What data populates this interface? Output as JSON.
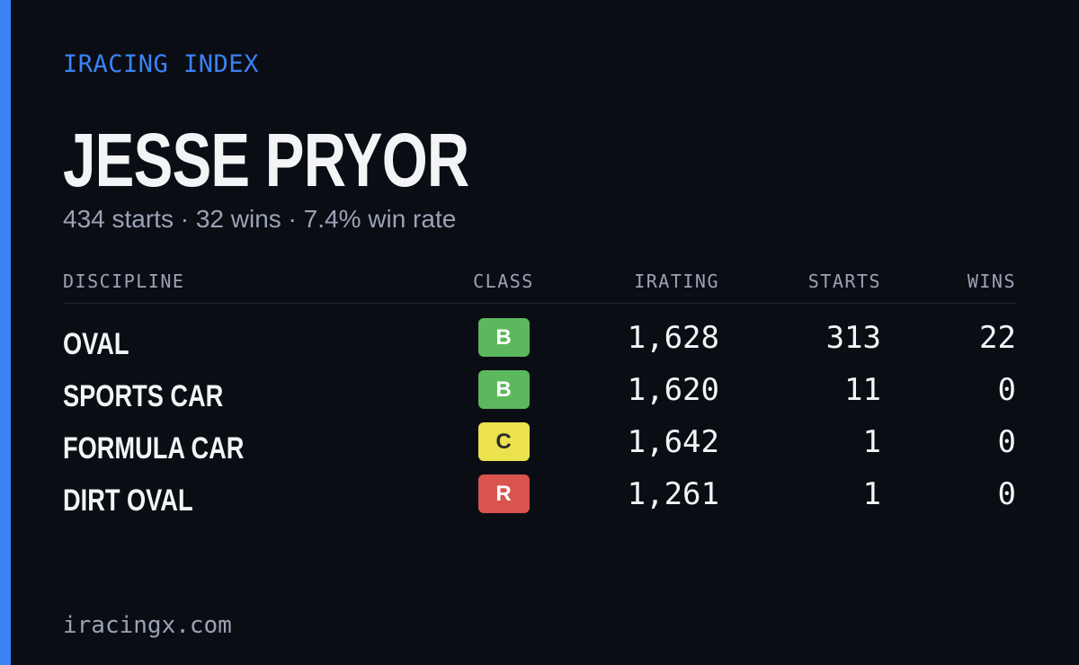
{
  "brand": "IRACING INDEX",
  "driver": {
    "name": "JESSE PRYOR",
    "summary": "434 starts · 32 wins · 7.4% win rate"
  },
  "table": {
    "headers": [
      "DISCIPLINE",
      "CLASS",
      "IRATING",
      "STARTS",
      "WINS"
    ],
    "rows": [
      {
        "discipline": "OVAL",
        "class": "B",
        "class_color": "#5cb85c",
        "irating": "1,628",
        "starts": "313",
        "wins": "22"
      },
      {
        "discipline": "SPORTS CAR",
        "class": "B",
        "class_color": "#5cb85c",
        "irating": "1,620",
        "starts": "11",
        "wins": "0"
      },
      {
        "discipline": "FORMULA CAR",
        "class": "C",
        "class_color": "#ebe24e",
        "irating": "1,642",
        "starts": "1",
        "wins": "0"
      },
      {
        "discipline": "DIRT OVAL",
        "class": "R",
        "class_color": "#d9534f",
        "irating": "1,261",
        "starts": "1",
        "wins": "0"
      }
    ]
  },
  "footer": "iracingx.com"
}
